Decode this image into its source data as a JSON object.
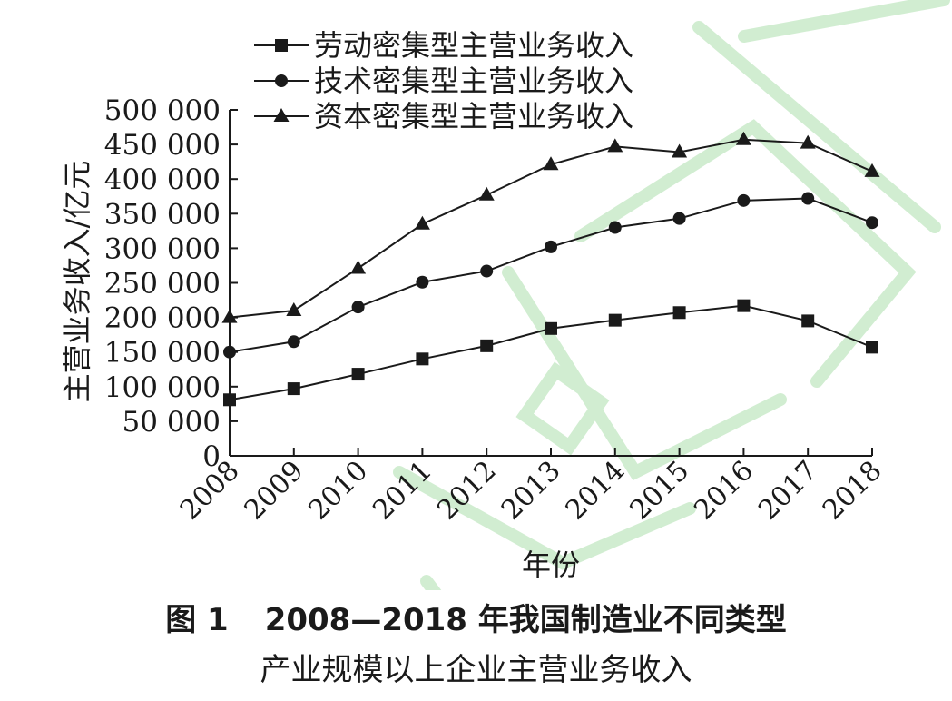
{
  "chart_data": {
    "type": "line",
    "xlabel": "年份",
    "ylabel": "主营业务收入/亿元",
    "ylim": [
      0,
      500000
    ],
    "ytick_values": [
      0,
      50000,
      100000,
      150000,
      200000,
      250000,
      300000,
      350000,
      400000,
      450000,
      500000
    ],
    "ytick_labels": [
      "0",
      "50 000",
      "100 000",
      "150 000",
      "200 000",
      "250 000",
      "300 000",
      "350 000",
      "400 000",
      "450 000",
      "500 000"
    ],
    "categories": [
      "2008",
      "2009",
      "2010",
      "2011",
      "2012",
      "2013",
      "2014",
      "2015",
      "2016",
      "2017",
      "2018"
    ],
    "grid": false,
    "legend_position": "top-left",
    "series": [
      {
        "name": "劳动密集型主营业务收入",
        "marker": "square",
        "values": [
          81000,
          97000,
          118000,
          140000,
          159000,
          184000,
          196000,
          207000,
          217000,
          195000,
          157000
        ]
      },
      {
        "name": "技术密集型主营业务收入",
        "marker": "circle",
        "values": [
          150000,
          165000,
          215000,
          251000,
          267000,
          302000,
          330000,
          343000,
          369000,
          372000,
          337000
        ]
      },
      {
        "name": "资本密集型主营业务收入",
        "marker": "triangle",
        "values": [
          200000,
          210000,
          271000,
          335000,
          377000,
          421000,
          447000,
          439000,
          457000,
          452000,
          411000
        ]
      }
    ]
  },
  "caption": {
    "number": "图 1",
    "line1": "2008—2018 年我国制造业不同类型",
    "line2": "产业规模以上企业主营业务收入"
  },
  "colors": {
    "line": "#1a1a1a",
    "watermark": "#cdeccd"
  }
}
